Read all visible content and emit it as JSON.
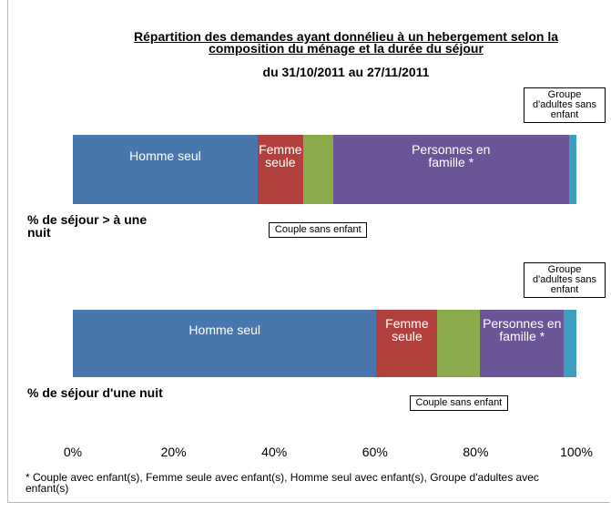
{
  "chart_data": {
    "type": "stacked-bar-horizontal",
    "title": "Répartition des demandes ayant donnélieu à un hebergement selon la composition du ménage et la durée du séjour",
    "subtitle": "du 31/10/2011 au 27/11/2011",
    "categories": [
      "% de séjour > à une nuit",
      "% de séjour d'une nuit"
    ],
    "series": [
      {
        "name": "Homme seul",
        "color": "#4a76ae",
        "values": [
          36.7,
          60.3
        ]
      },
      {
        "name": "Femme seule",
        "color": "#b2403c",
        "values": [
          9.0,
          12.1
        ]
      },
      {
        "name": "Couple sans enfant",
        "color": "#8aaa4c",
        "values": [
          6.0,
          8.5
        ]
      },
      {
        "name": "Personnes en famille *",
        "color": "#6c5596",
        "values": [
          46.8,
          16.6
        ]
      },
      {
        "name": "Groupe d'adultes sans enfant",
        "color": "#3d9fbf",
        "values": [
          1.5,
          2.5
        ]
      }
    ],
    "xlim": [
      0,
      100
    ],
    "xticks": [
      {
        "value": 0,
        "label": "0%"
      },
      {
        "value": 20,
        "label": "20%"
      },
      {
        "value": 40,
        "label": "40%"
      },
      {
        "value": 60,
        "label": "60%"
      },
      {
        "value": 80,
        "label": "80%"
      },
      {
        "value": 100,
        "label": "100%"
      }
    ],
    "footnote": "* Couple avec enfant(s), Femme seule avec enfant(s), Homme seul avec enfant(s), Groupe d'adultes  avec enfant(s)"
  }
}
